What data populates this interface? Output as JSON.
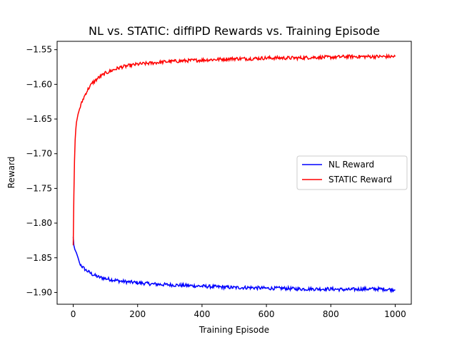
{
  "chart_data": {
    "type": "line",
    "title": "NL vs. STATIC: diffIPD Rewards vs. Training Episode",
    "xlabel": "Training Episode",
    "ylabel": "Reward",
    "xlim": [
      -50,
      1050
    ],
    "ylim": [
      -1.917,
      -1.538
    ],
    "xticks": [
      0,
      200,
      400,
      600,
      800,
      1000
    ],
    "xtick_labels": [
      "0",
      "200",
      "400",
      "600",
      "800",
      "1000"
    ],
    "yticks": [
      -1.9,
      -1.85,
      -1.8,
      -1.75,
      -1.7,
      -1.65,
      -1.6,
      -1.55
    ],
    "ytick_labels": [
      "−1.90",
      "−1.85",
      "−1.80",
      "−1.75",
      "−1.70",
      "−1.65",
      "−1.60",
      "−1.55"
    ],
    "grid": false,
    "legend_position": "center-right",
    "series": [
      {
        "name": "NL Reward",
        "color": "#0000ff",
        "x": [
          0,
          2,
          5,
          10,
          15,
          20,
          30,
          40,
          50,
          60,
          80,
          100,
          125,
          150,
          175,
          200,
          250,
          300,
          350,
          400,
          450,
          500,
          550,
          600,
          650,
          700,
          750,
          800,
          850,
          900,
          950,
          1000
        ],
        "y": [
          -1.82,
          -1.832,
          -1.838,
          -1.843,
          -1.85,
          -1.858,
          -1.864,
          -1.868,
          -1.871,
          -1.874,
          -1.878,
          -1.88,
          -1.882,
          -1.884,
          -1.885,
          -1.886,
          -1.888,
          -1.889,
          -1.89,
          -1.891,
          -1.892,
          -1.893,
          -1.893,
          -1.894,
          -1.894,
          -1.895,
          -1.895,
          -1.895,
          -1.896,
          -1.895,
          -1.895,
          -1.896
        ]
      },
      {
        "name": "STATIC Reward",
        "color": "#ff0000",
        "x": [
          0,
          2,
          4,
          6,
          8,
          10,
          15,
          20,
          30,
          40,
          50,
          60,
          70,
          80,
          100,
          125,
          150,
          175,
          200,
          250,
          300,
          350,
          400,
          450,
          500,
          550,
          600,
          650,
          700,
          750,
          800,
          850,
          900,
          950,
          1000
        ],
        "y": [
          -1.832,
          -1.76,
          -1.71,
          -1.68,
          -1.665,
          -1.655,
          -1.643,
          -1.635,
          -1.622,
          -1.612,
          -1.604,
          -1.598,
          -1.594,
          -1.59,
          -1.584,
          -1.579,
          -1.575,
          -1.573,
          -1.571,
          -1.569,
          -1.567,
          -1.566,
          -1.565,
          -1.564,
          -1.563,
          -1.563,
          -1.562,
          -1.562,
          -1.562,
          -1.561,
          -1.561,
          -1.56,
          -1.56,
          -1.56,
          -1.56
        ]
      }
    ]
  }
}
